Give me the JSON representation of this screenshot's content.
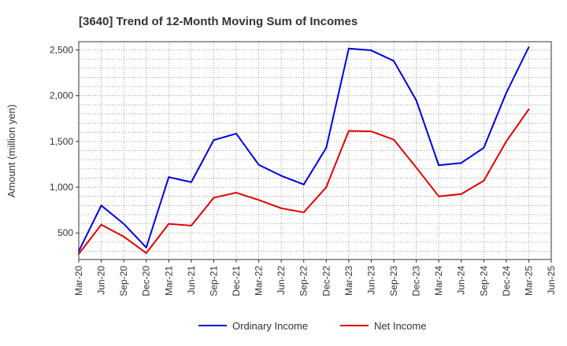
{
  "chart_data": {
    "type": "line",
    "title": "[3640]  Trend of 12-Month Moving Sum of Incomes",
    "xlabel": "",
    "ylabel": "Amount (million yen)",
    "categories": [
      "Mar-20",
      "Jun-20",
      "Sep-20",
      "Dec-20",
      "Mar-21",
      "Jun-21",
      "Sep-21",
      "Dec-21",
      "Mar-22",
      "Jun-22",
      "Sep-22",
      "Dec-22",
      "Mar-23",
      "Jun-23",
      "Sep-23",
      "Dec-23",
      "Mar-24",
      "Jun-24",
      "Sep-24",
      "Dec-24",
      "Mar-25",
      "Jun-25"
    ],
    "yticks": [
      500,
      1000,
      1500,
      2000,
      2500
    ],
    "ytick_labels": [
      "500",
      "1,000",
      "1,500",
      "2,000",
      "2,500"
    ],
    "ylim": [
      210,
      2590
    ],
    "grid": true,
    "legend_position": "bottom",
    "series": [
      {
        "name": "Ordinary Income",
        "color": "#0000dd",
        "values": [
          300,
          800,
          600,
          340,
          1110,
          1055,
          1515,
          1585,
          1245,
          1125,
          1030,
          1430,
          2515,
          2495,
          2380,
          1950,
          1240,
          1265,
          1430,
          2030,
          2530,
          null
        ]
      },
      {
        "name": "Net Income",
        "color": "#dd0000",
        "values": [
          270,
          590,
          460,
          280,
          600,
          580,
          885,
          940,
          860,
          770,
          725,
          1000,
          1615,
          1610,
          1520,
          1215,
          900,
          925,
          1070,
          1500,
          1850,
          null
        ]
      }
    ]
  }
}
